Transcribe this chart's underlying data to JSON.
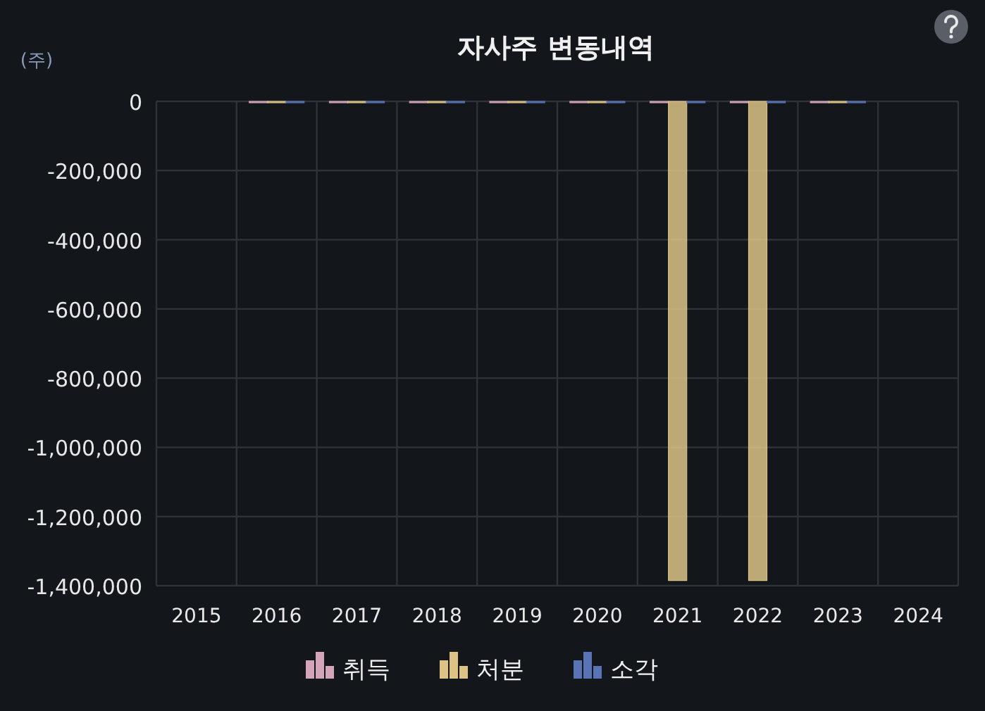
{
  "chart_data": {
    "type": "bar",
    "title": "자사주 변동내역",
    "ylabel": "(주)",
    "categories": [
      "2015",
      "2016",
      "2017",
      "2018",
      "2019",
      "2020",
      "2021",
      "2022",
      "2023",
      "2024"
    ],
    "series": [
      {
        "name": "취득",
        "color": "#d4a5b8",
        "values": [
          null,
          -4000,
          -4000,
          -4000,
          -4000,
          -4000,
          -4000,
          -4000,
          -4000,
          null
        ]
      },
      {
        "name": "처분",
        "color": "#dcc385",
        "values": [
          null,
          -4000,
          -4000,
          -4000,
          -4000,
          -4000,
          -1385000,
          -1385000,
          -4000,
          null
        ]
      },
      {
        "name": "소각",
        "color": "#5a73b5",
        "values": [
          null,
          -4000,
          -4000,
          -4000,
          -4000,
          -4000,
          -4000,
          -4000,
          -4000,
          null
        ]
      }
    ],
    "ylim": [
      -1400000,
      0
    ],
    "yticks": [
      {
        "value": 0,
        "label": "0"
      },
      {
        "value": -200000,
        "label": "-200,000"
      },
      {
        "value": -400000,
        "label": "-400,000"
      },
      {
        "value": -600000,
        "label": "-600,000"
      },
      {
        "value": -800000,
        "label": "-800,000"
      },
      {
        "value": -1000000,
        "label": "-1,000,000"
      },
      {
        "value": -1200000,
        "label": "-1,200,000"
      },
      {
        "value": -1400000,
        "label": "-1,400,000"
      }
    ],
    "grid": true,
    "legend": "bottom"
  }
}
